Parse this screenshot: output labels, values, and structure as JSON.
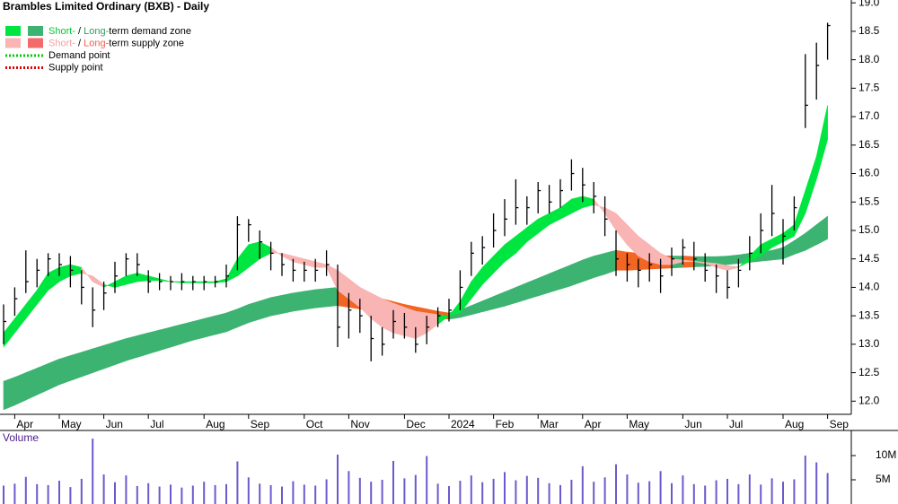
{
  "chart_data": [
    {
      "type": "ohlc",
      "title": "Brambles Limited Ordinary (BXB) - Daily",
      "categories": [
        null,
        "Apr",
        null,
        null,
        null,
        "May",
        null,
        null,
        null,
        "Jun",
        null,
        null,
        null,
        "Jul",
        null,
        null,
        null,
        null,
        "Aug",
        null,
        null,
        null,
        "Sep",
        null,
        null,
        null,
        null,
        "Oct",
        null,
        null,
        null,
        "Nov",
        null,
        null,
        null,
        null,
        "Dec",
        null,
        null,
        null,
        "2024",
        null,
        null,
        null,
        "Feb",
        null,
        null,
        null,
        "Mar",
        null,
        null,
        null,
        "Apr",
        null,
        null,
        null,
        "May",
        null,
        null,
        null,
        null,
        "Jun",
        null,
        null,
        null,
        "Jul",
        null,
        null,
        null,
        null,
        "Aug",
        null,
        null,
        null,
        "Sep"
      ],
      "high": [
        13.7,
        14.0,
        14.65,
        14.5,
        14.6,
        14.6,
        14.55,
        14.3,
        14.0,
        14.1,
        14.45,
        14.6,
        14.6,
        14.3,
        14.25,
        14.2,
        14.25,
        14.2,
        14.2,
        14.2,
        14.4,
        15.25,
        15.2,
        15.0,
        14.8,
        14.6,
        14.5,
        14.45,
        14.5,
        14.65,
        14.4,
        13.9,
        13.8,
        13.5,
        13.3,
        13.6,
        13.55,
        13.3,
        13.5,
        13.65,
        13.8,
        14.3,
        14.8,
        14.9,
        15.3,
        15.55,
        15.9,
        15.6,
        15.85,
        15.8,
        15.9,
        16.25,
        16.1,
        15.85,
        15.6,
        15.0,
        14.6,
        14.5,
        14.6,
        14.5,
        14.7,
        14.85,
        14.8,
        14.6,
        14.4,
        14.3,
        14.5,
        14.9,
        15.3,
        15.8,
        15.2,
        15.6,
        18.1,
        18.3,
        18.65
      ],
      "low": [
        13.0,
        13.5,
        13.9,
        14.0,
        14.2,
        14.2,
        14.0,
        13.7,
        13.3,
        13.6,
        13.9,
        14.2,
        14.2,
        13.9,
        13.95,
        13.95,
        13.95,
        13.95,
        13.95,
        14.0,
        14.0,
        14.3,
        14.8,
        14.5,
        14.3,
        14.2,
        14.1,
        14.1,
        14.1,
        14.2,
        12.95,
        13.1,
        13.2,
        12.7,
        12.8,
        13.1,
        13.1,
        12.85,
        13.0,
        13.3,
        13.4,
        13.6,
        14.2,
        14.4,
        14.7,
        14.9,
        15.1,
        15.1,
        15.3,
        15.3,
        15.4,
        15.7,
        15.5,
        15.3,
        14.9,
        14.2,
        14.1,
        14.0,
        14.1,
        13.9,
        14.2,
        14.4,
        14.3,
        14.1,
        13.9,
        13.8,
        14.0,
        14.3,
        14.6,
        14.9,
        14.4,
        15.0,
        16.8,
        17.3,
        18.0
      ],
      "close": [
        13.4,
        13.8,
        14.1,
        14.3,
        14.5,
        14.4,
        14.3,
        14.0,
        13.6,
        13.9,
        14.2,
        14.5,
        14.4,
        14.1,
        14.1,
        14.1,
        14.1,
        14.1,
        14.1,
        14.1,
        14.2,
        15.1,
        15.1,
        14.8,
        14.6,
        14.4,
        14.3,
        14.3,
        14.3,
        14.4,
        13.3,
        13.6,
        13.5,
        13.1,
        13.0,
        13.4,
        13.3,
        13.0,
        13.3,
        13.5,
        13.6,
        14.0,
        14.6,
        14.7,
        15.0,
        15.2,
        15.4,
        15.4,
        15.7,
        15.5,
        15.7,
        16.0,
        15.8,
        15.6,
        15.2,
        14.5,
        14.4,
        14.3,
        14.4,
        14.2,
        14.5,
        14.7,
        14.5,
        14.3,
        14.2,
        14.0,
        14.3,
        14.6,
        15.0,
        15.3,
        14.9,
        15.4,
        17.2,
        17.9,
        18.6
      ],
      "short_fast": [
        13.2,
        13.45,
        13.7,
        13.95,
        14.25,
        14.35,
        14.4,
        14.35,
        14.1,
        14.0,
        14.1,
        14.2,
        14.25,
        14.2,
        14.15,
        14.1,
        14.1,
        14.1,
        14.1,
        14.1,
        14.15,
        14.5,
        14.75,
        14.8,
        14.7,
        14.55,
        14.45,
        14.4,
        14.35,
        14.35,
        13.95,
        13.8,
        13.65,
        13.45,
        13.3,
        13.2,
        13.15,
        13.1,
        13.2,
        13.35,
        13.5,
        13.75,
        14.1,
        14.35,
        14.55,
        14.75,
        14.9,
        15.05,
        15.2,
        15.3,
        15.4,
        15.55,
        15.6,
        15.55,
        15.3,
        15.0,
        14.75,
        14.55,
        14.45,
        14.4,
        14.4,
        14.45,
        14.45,
        14.42,
        14.35,
        14.3,
        14.35,
        14.55,
        14.75,
        14.85,
        14.95,
        15.1,
        15.7,
        16.3,
        17.2
      ],
      "short_slow": [
        12.95,
        13.2,
        13.45,
        13.7,
        13.95,
        14.1,
        14.2,
        14.25,
        14.2,
        14.05,
        14.0,
        14.05,
        14.1,
        14.12,
        14.12,
        14.1,
        14.08,
        14.08,
        14.08,
        14.08,
        14.1,
        14.2,
        14.35,
        14.5,
        14.6,
        14.6,
        14.55,
        14.5,
        14.45,
        14.4,
        14.3,
        14.15,
        14.0,
        13.9,
        13.8,
        13.72,
        13.65,
        13.58,
        13.55,
        13.52,
        13.5,
        13.55,
        13.8,
        14.05,
        14.25,
        14.45,
        14.6,
        14.8,
        14.95,
        15.1,
        15.2,
        15.3,
        15.4,
        15.45,
        15.4,
        15.3,
        15.1,
        14.9,
        14.75,
        14.6,
        14.5,
        14.48,
        14.46,
        14.44,
        14.42,
        14.38,
        14.36,
        14.45,
        14.55,
        14.7,
        14.8,
        14.9,
        15.3,
        15.9,
        16.6
      ],
      "long_upper": [
        12.35,
        12.42,
        12.5,
        12.58,
        12.66,
        12.74,
        12.8,
        12.86,
        12.92,
        12.98,
        13.04,
        13.1,
        13.15,
        13.2,
        13.25,
        13.3,
        13.35,
        13.4,
        13.45,
        13.5,
        13.55,
        13.62,
        13.7,
        13.76,
        13.82,
        13.86,
        13.9,
        13.93,
        13.96,
        13.98,
        14.0,
        13.95,
        13.9,
        13.85,
        13.8,
        13.75,
        13.7,
        13.66,
        13.62,
        13.58,
        13.55,
        13.6,
        13.68,
        13.76,
        13.84,
        13.92,
        14.0,
        14.08,
        14.16,
        14.24,
        14.32,
        14.4,
        14.48,
        14.55,
        14.6,
        14.65,
        14.62,
        14.6,
        14.58,
        14.56,
        14.55,
        14.55,
        14.54,
        14.54,
        14.54,
        14.55,
        14.57,
        14.6,
        14.62,
        14.65,
        14.7,
        14.82,
        14.95,
        15.1,
        15.25
      ],
      "long_lower": [
        11.85,
        11.93,
        12.02,
        12.11,
        12.2,
        12.29,
        12.36,
        12.43,
        12.5,
        12.57,
        12.64,
        12.71,
        12.77,
        12.83,
        12.89,
        12.95,
        13.01,
        13.07,
        13.12,
        13.17,
        13.22,
        13.3,
        13.38,
        13.44,
        13.5,
        13.54,
        13.58,
        13.61,
        13.64,
        13.66,
        13.68,
        13.65,
        13.62,
        13.6,
        13.57,
        13.55,
        13.52,
        13.5,
        13.48,
        13.46,
        13.44,
        13.47,
        13.52,
        13.57,
        13.62,
        13.67,
        13.73,
        13.79,
        13.85,
        13.91,
        13.97,
        14.03,
        14.1,
        14.17,
        14.23,
        14.3,
        14.3,
        14.31,
        14.32,
        14.33,
        14.34,
        14.35,
        14.36,
        14.37,
        14.38,
        14.4,
        14.42,
        14.44,
        14.46,
        14.48,
        14.5,
        14.58,
        14.65,
        14.75,
        14.85
      ],
      "zone_colors": {
        "short_demand": "#00e640",
        "short_supply": "#f9b4b4",
        "long_demand": "#3cb371",
        "long_supply": "#f26522"
      },
      "bar_color": "#000000",
      "ylim": [
        11.8,
        19.05
      ],
      "yticks": [
        {
          "value": 12,
          "label": "12.0"
        },
        {
          "value": 12.5,
          "label": "12.5"
        },
        {
          "value": 13,
          "label": "13.0"
        },
        {
          "value": 13.5,
          "label": "13.5"
        },
        {
          "value": 14,
          "label": "14.0"
        },
        {
          "value": 14.5,
          "label": "14.5"
        },
        {
          "value": 15,
          "label": "15.0"
        },
        {
          "value": 15.5,
          "label": "15.5"
        },
        {
          "value": 16,
          "label": "16.0"
        },
        {
          "value": 16.5,
          "label": "16.5"
        },
        {
          "value": 17,
          "label": "17.0"
        },
        {
          "value": 17.5,
          "label": "17.5"
        },
        {
          "value": 18,
          "label": "18.0"
        },
        {
          "value": 18.5,
          "label": "18.5"
        },
        {
          "value": 19,
          "label": "19.0"
        }
      ],
      "legend": [
        {
          "parts": [
            "Short-",
            " / ",
            "Long-",
            "term demand zone"
          ],
          "part_colors": [
            "#00c832",
            "#000000",
            "#2e9e5e",
            "#000000"
          ],
          "swatches": [
            "#00e640",
            "#3cb371"
          ]
        },
        {
          "parts": [
            "Short-",
            " / ",
            "Long-",
            "term supply zone"
          ],
          "part_colors": [
            "#f4a0a0",
            "#000000",
            "#f06050",
            "#000000"
          ],
          "swatches": [
            "#f9b4b4",
            "#f26a6a"
          ]
        },
        {
          "parts": [
            "Demand point"
          ],
          "part_colors": [
            "#000000"
          ],
          "line": "#00cc00"
        },
        {
          "parts": [
            "Supply point"
          ],
          "part_colors": [
            "#000000"
          ],
          "line": "#dd0000"
        }
      ]
    },
    {
      "type": "bar",
      "title": "Volume",
      "title_color": "#4b1a8c",
      "color": "#6a5acd",
      "values": [
        3800000,
        4200000,
        5600000,
        4100000,
        3900000,
        4800000,
        3500000,
        5200000,
        13500000,
        6100000,
        4500000,
        5900000,
        3700000,
        4300000,
        3600000,
        4000000,
        3400000,
        3800000,
        4600000,
        3900000,
        4100000,
        8800000,
        5500000,
        4200000,
        3900000,
        3600000,
        4700000,
        4000000,
        3800000,
        5100000,
        10200000,
        6800000,
        5400000,
        4600000,
        5000000,
        8900000,
        5300000,
        6000000,
        9900000,
        4200000,
        3700000,
        4800000,
        5900000,
        4500000,
        5200000,
        6600000,
        4900000,
        5800000,
        5400000,
        4300000,
        3900000,
        5000000,
        7800000,
        4600000,
        5500000,
        8200000,
        6100000,
        4400000,
        4700000,
        6800000,
        4300000,
        5900000,
        4100000,
        3800000,
        4900000,
        5200000,
        4100000,
        6100000,
        4000000,
        5300000,
        4600000,
        5100000,
        10000000,
        8600000,
        6400000
      ],
      "ylim": [
        0,
        15000000
      ],
      "yticks": [
        {
          "value": 5000000,
          "label": "5M"
        },
        {
          "value": 10000000,
          "label": "10M"
        }
      ]
    }
  ]
}
